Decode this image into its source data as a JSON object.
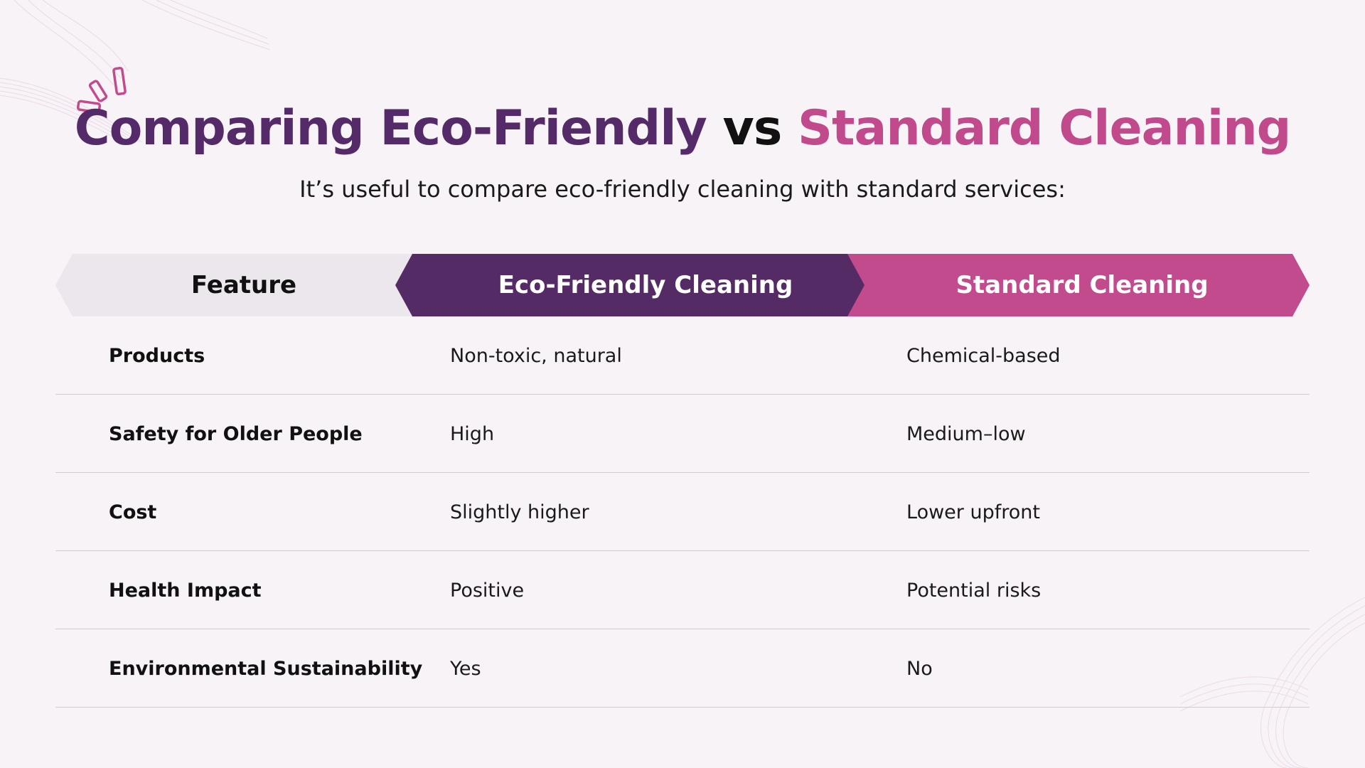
{
  "title": {
    "part_a": "Comparing Eco-Friendly",
    "part_b": "vs",
    "part_c": "Standard Cleaning"
  },
  "subtitle": "It’s useful to compare eco-friendly cleaning with standard services:",
  "colors": {
    "accent_purple": "#552b66",
    "accent_pink": "#c14b8d",
    "header_gray": "#ece6ed",
    "background": "#f8f3f7"
  },
  "icons": {
    "spark": "spark-lines-icon",
    "wave_top_left": "wave-lines-decoration",
    "wave_bottom_right": "wave-lines-decoration"
  },
  "table": {
    "headers": [
      "Feature",
      "Eco-Friendly Cleaning",
      "Standard Cleaning"
    ],
    "rows": [
      {
        "feature": "Products",
        "eco": "Non-toxic, natural",
        "standard": "Chemical-based"
      },
      {
        "feature": "Safety for Older People",
        "eco": "High",
        "standard": "Medium–low"
      },
      {
        "feature": "Cost",
        "eco": "Slightly higher",
        "standard": "Lower upfront"
      },
      {
        "feature": "Health Impact",
        "eco": "Positive",
        "standard": "Potential risks"
      },
      {
        "feature": "Environmental Sustainability",
        "eco": "Yes",
        "standard": "No"
      }
    ]
  }
}
